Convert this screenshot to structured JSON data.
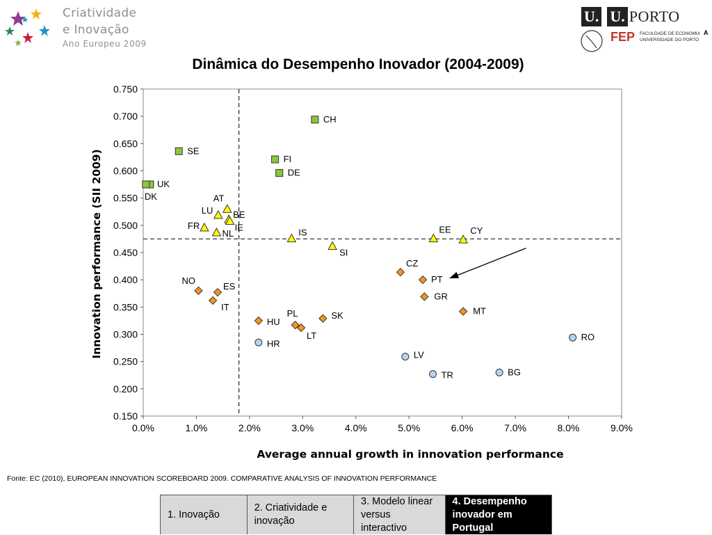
{
  "header": {
    "left_logo": {
      "line1": "Criatividade",
      "line2": "e Inovação",
      "line3": "Ano Europeu 2009",
      "icon": "stars-icon"
    },
    "right_logo": {
      "u1": "U.",
      "u2": "U.",
      "porto": "PORTO",
      "fep": "FEP",
      "fep_line1": "FACULDADE DE ECONOMIA",
      "fep_line2": "UNIVERSIDADE DO PORTO",
      "letter": "A"
    }
  },
  "title": "Dinâmica do Desempenho Inovador (2004-2009)",
  "source": "Fonte: EC (2010), EUROPEAN INNOVATION SCOREBOARD 2009. COMPARATIVE ANALYSIS OF INNOVATION PERFORMANCE",
  "nav": {
    "tabs": [
      {
        "label": "1. Inovação",
        "active": false
      },
      {
        "label": "2. Criatividade e inovação",
        "active": false
      },
      {
        "label": "3. Modelo linear versus interactivo",
        "active": false
      },
      {
        "label": "4. Desempenho inovador em Portugal",
        "active": true
      }
    ]
  },
  "chart_data": {
    "type": "scatter",
    "xlabel": "Average annual growth in innovation performance",
    "ylabel": "Innovation performance (SII 2009)",
    "xlim": [
      0,
      9
    ],
    "ylim": [
      0.15,
      0.75
    ],
    "x_ticks": [
      "0.0%",
      "1.0%",
      "2.0%",
      "3.0%",
      "4.0%",
      "5.0%",
      "6.0%",
      "7.0%",
      "8.0%",
      "9.0%"
    ],
    "y_ticks": [
      "0.150",
      "0.200",
      "0.250",
      "0.300",
      "0.350",
      "0.400",
      "0.450",
      "0.500",
      "0.550",
      "0.600",
      "0.650",
      "0.700",
      "0.750"
    ],
    "reference_lines": {
      "x": 1.8,
      "y": 0.475
    },
    "colors": {
      "leaders": "#8dc63f",
      "followers": "#ffff00",
      "moderate": "#f7941d",
      "catching_up": "#b3d4f5"
    },
    "series": [
      {
        "group": "leaders",
        "marker": "square",
        "points": [
          {
            "label": "CH",
            "x": 3.23,
            "y": 0.694
          },
          {
            "label": "SE",
            "x": 0.67,
            "y": 0.636
          },
          {
            "label": "FI",
            "x": 2.48,
            "y": 0.621
          },
          {
            "label": "DE",
            "x": 2.56,
            "y": 0.596
          },
          {
            "label": "UK",
            "x": 0.13,
            "y": 0.575
          },
          {
            "label": "DK",
            "x": 0.05,
            "y": 0.575
          }
        ]
      },
      {
        "group": "followers",
        "marker": "triangle",
        "points": [
          {
            "label": "AT",
            "x": 1.58,
            "y": 0.53
          },
          {
            "label": "LU",
            "x": 1.41,
            "y": 0.519
          },
          {
            "label": "BE",
            "x": 1.61,
            "y": 0.511
          },
          {
            "label": "IE",
            "x": 1.63,
            "y": 0.508
          },
          {
            "label": "FR",
            "x": 1.15,
            "y": 0.496
          },
          {
            "label": "NL",
            "x": 1.38,
            "y": 0.487
          },
          {
            "label": "IS",
            "x": 2.79,
            "y": 0.476
          },
          {
            "label": "EE",
            "x": 5.46,
            "y": 0.476
          },
          {
            "label": "CY",
            "x": 6.02,
            "y": 0.474
          },
          {
            "label": "SI",
            "x": 3.56,
            "y": 0.462
          }
        ]
      },
      {
        "group": "moderate",
        "marker": "diamond",
        "points": [
          {
            "label": "CZ",
            "x": 4.84,
            "y": 0.414
          },
          {
            "label": "PT",
            "x": 5.26,
            "y": 0.4
          },
          {
            "label": "NO",
            "x": 1.04,
            "y": 0.38
          },
          {
            "label": "ES",
            "x": 1.4,
            "y": 0.377
          },
          {
            "label": "GR",
            "x": 5.29,
            "y": 0.369
          },
          {
            "label": "IT",
            "x": 1.31,
            "y": 0.362
          },
          {
            "label": "MT",
            "x": 6.02,
            "y": 0.342
          },
          {
            "label": "SK",
            "x": 3.38,
            "y": 0.329
          },
          {
            "label": "HU",
            "x": 2.17,
            "y": 0.325
          },
          {
            "label": "PL",
            "x": 2.86,
            "y": 0.317
          },
          {
            "label": "LT",
            "x": 2.97,
            "y": 0.312
          }
        ]
      },
      {
        "group": "catching_up",
        "marker": "circle",
        "points": [
          {
            "label": "RO",
            "x": 8.08,
            "y": 0.294
          },
          {
            "label": "HR",
            "x": 2.17,
            "y": 0.285
          },
          {
            "label": "LV",
            "x": 4.93,
            "y": 0.259
          },
          {
            "label": "BG",
            "x": 6.7,
            "y": 0.23
          },
          {
            "label": "TR",
            "x": 5.45,
            "y": 0.227
          }
        ]
      }
    ],
    "annotation": {
      "type": "arrow",
      "target": "PT"
    }
  }
}
